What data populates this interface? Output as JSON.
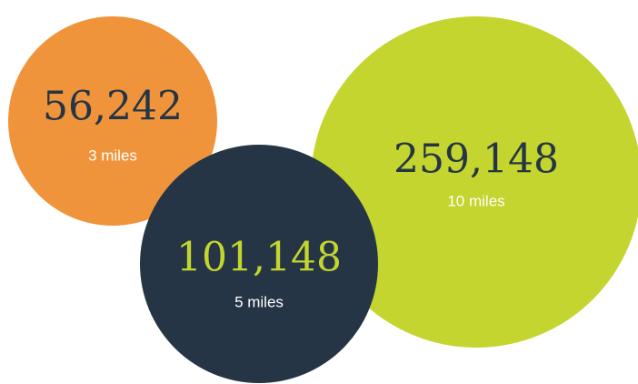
{
  "circles": [
    {
      "value": "56,242",
      "label": "3 miles"
    },
    {
      "value": "259,148",
      "label": "10 miles"
    },
    {
      "value": "101,148",
      "label": "5 miles"
    }
  ]
}
